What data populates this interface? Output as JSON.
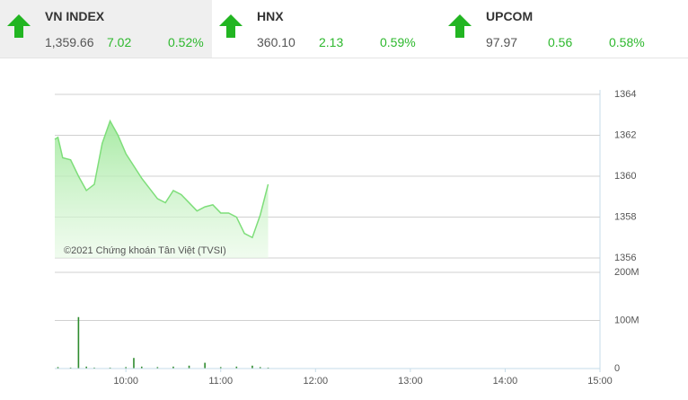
{
  "indices": [
    {
      "name": "VN INDEX",
      "value": "1,359.66",
      "change": "7.02",
      "percent": "0.52%"
    },
    {
      "name": "HNX",
      "value": "360.10",
      "change": "2.13",
      "percent": "0.59%"
    },
    {
      "name": "UPCOM",
      "value": "97.97",
      "change": "0.56",
      "percent": "0.58%"
    }
  ],
  "chart_data": [
    {
      "type": "area",
      "annotation": "©2021 Chứng khoán Tân Việt (TVSI)",
      "x": [
        "09:15",
        "09:17",
        "09:20",
        "09:25",
        "09:30",
        "09:35",
        "09:40",
        "09:45",
        "09:50",
        "09:55",
        "10:00",
        "10:05",
        "10:10",
        "10:15",
        "10:20",
        "10:25",
        "10:30",
        "10:35",
        "10:40",
        "10:45",
        "10:50",
        "10:55",
        "11:00",
        "11:05",
        "11:10",
        "11:15",
        "11:20",
        "11:25",
        "11:30"
      ],
      "values": [
        1361.8,
        1361.9,
        1360.9,
        1360.8,
        1360.0,
        1359.3,
        1359.6,
        1361.6,
        1362.7,
        1362.0,
        1361.1,
        1360.5,
        1359.9,
        1359.4,
        1358.9,
        1358.7,
        1359.3,
        1359.1,
        1358.7,
        1358.3,
        1358.5,
        1358.6,
        1358.2,
        1358.2,
        1358.0,
        1357.2,
        1357.0,
        1358.1,
        1359.6
      ],
      "color": "#7ede7a",
      "xlim": [
        "09:15",
        "15:00"
      ],
      "ylim": [
        1356,
        1364
      ],
      "yticks": [
        1356,
        1358,
        1360,
        1362,
        1364
      ],
      "grid": true
    },
    {
      "type": "bar",
      "x": [
        "09:17",
        "09:25",
        "09:30",
        "09:35",
        "09:40",
        "09:50",
        "10:00",
        "10:05",
        "10:10",
        "10:20",
        "10:30",
        "10:40",
        "10:50",
        "11:00",
        "11:10",
        "11:20",
        "11:25",
        "11:30"
      ],
      "values": [
        3000000,
        2000000,
        107000000,
        4000000,
        2000000,
        2000000,
        3000000,
        22000000,
        4000000,
        3000000,
        4000000,
        6000000,
        12000000,
        3000000,
        4000000,
        6000000,
        3000000,
        2000000
      ],
      "color": "#2e8b2e",
      "xlim": [
        "09:15",
        "15:00"
      ],
      "ylim": [
        0,
        200000000
      ],
      "yticks": [
        0,
        {
          "value": 100000000,
          "label": "100M"
        },
        {
          "value": 200000000,
          "label": "200M"
        }
      ],
      "xticks": [
        "10:00",
        "11:00",
        "12:00",
        "13:00",
        "14:00",
        "15:00"
      ],
      "grid": true
    }
  ]
}
